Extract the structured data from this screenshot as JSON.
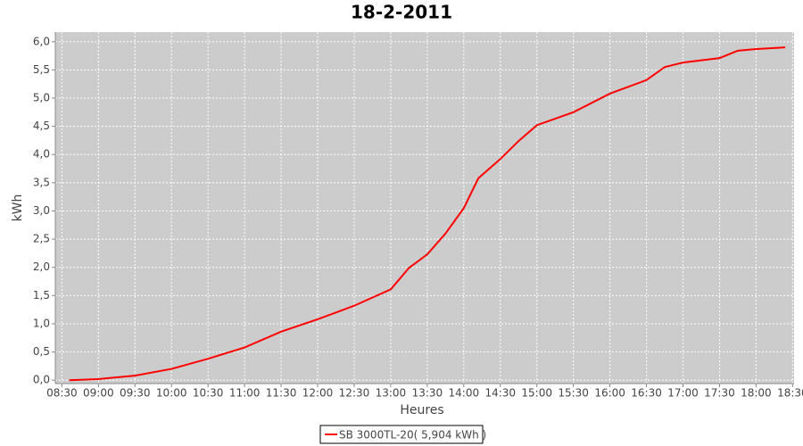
{
  "chart_data": {
    "type": "line",
    "title": "18-2-2011",
    "x_label": "Heures",
    "y_label": "kWh",
    "xlim": [
      8.41,
      18.52
    ],
    "xticks": [
      {
        "value": 8.5,
        "label": "08:30"
      },
      {
        "value": 9,
        "label": "09:00"
      },
      {
        "value": 9.5,
        "label": "09:30"
      },
      {
        "value": 10,
        "label": "10:00"
      },
      {
        "value": 10.5,
        "label": "10:30"
      },
      {
        "value": 11,
        "label": "11:00"
      },
      {
        "value": 11.5,
        "label": "11:30"
      },
      {
        "value": 12,
        "label": "12:00"
      },
      {
        "value": 12.5,
        "label": "12:30"
      },
      {
        "value": 13,
        "label": "13:00"
      },
      {
        "value": 13.5,
        "label": "13:30"
      },
      {
        "value": 14,
        "label": "14:00"
      },
      {
        "value": 14.5,
        "label": "14:30"
      },
      {
        "value": 15,
        "label": "15:00"
      },
      {
        "value": 15.5,
        "label": "15:30"
      },
      {
        "value": 16,
        "label": "16:00"
      },
      {
        "value": 16.5,
        "label": "16:30"
      },
      {
        "value": 17,
        "label": "17:00"
      },
      {
        "value": 17.5,
        "label": "17:30"
      },
      {
        "value": 18,
        "label": "18:00"
      },
      {
        "value": 18.5,
        "label": "18:30"
      }
    ],
    "ylim": [
      -0.06,
      6.17
    ],
    "yticks": [
      {
        "value": 0,
        "label": "0,0"
      },
      {
        "value": 0.5,
        "label": "0,5"
      },
      {
        "value": 1,
        "label": "1,0"
      },
      {
        "value": 1.5,
        "label": "1,5"
      },
      {
        "value": 2,
        "label": "2,0"
      },
      {
        "value": 2.5,
        "label": "2,5"
      },
      {
        "value": 3,
        "label": "3,0"
      },
      {
        "value": 3.5,
        "label": "3,5"
      },
      {
        "value": 4,
        "label": "4,0"
      },
      {
        "value": 4.5,
        "label": "4,5"
      },
      {
        "value": 5,
        "label": "5,0"
      },
      {
        "value": 5.5,
        "label": "5,5"
      },
      {
        "value": 6,
        "label": "6,0"
      }
    ],
    "grid": true,
    "x": [
      8.6,
      9,
      9.5,
      10,
      10.5,
      11,
      11.5,
      12,
      12.5,
      13,
      13.25,
      13.5,
      13.75,
      14,
      14.2,
      14.5,
      14.75,
      15,
      15.5,
      16,
      16.5,
      16.75,
      17,
      17.5,
      17.75,
      18,
      18.4
    ],
    "series": [
      {
        "name": "SB 3000TL-20( 5,904 kWh )",
        "color": "#ff0000",
        "values": [
          0,
          0.02,
          0.08,
          0.2,
          0.38,
          0.58,
          0.86,
          1.08,
          1.32,
          1.61,
          1.99,
          2.23,
          2.6,
          3.05,
          3.58,
          3.92,
          4.24,
          4.52,
          4.75,
          5.08,
          5.32,
          5.55,
          5.63,
          5.71,
          5.84,
          5.87,
          5.9
        ]
      }
    ],
    "legend": "bottom"
  }
}
